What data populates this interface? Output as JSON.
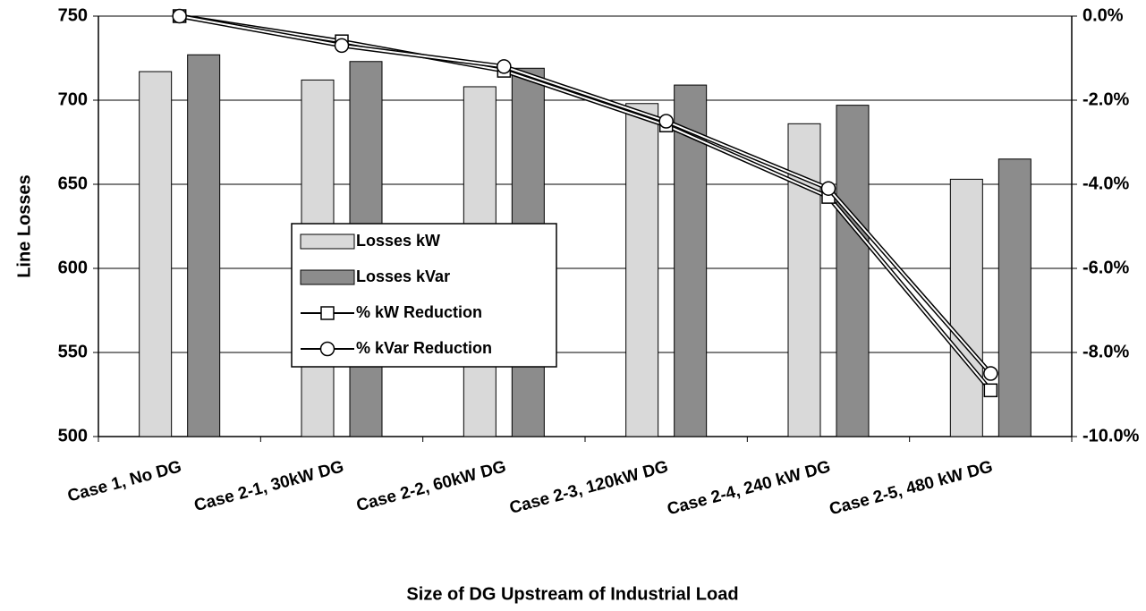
{
  "chart_data": {
    "type": "bar",
    "xlabel": "Size of DG Upstream of Industrial Load",
    "ylabel": "Line Losses",
    "categories": [
      "Case 1, No DG",
      "Case 2-1, 30kW DG",
      "Case 2-2, 60kW DG",
      "Case 2-3, 120kW DG",
      "Case 2-4, 240 kW DG",
      "Case 2-5, 480 kW DG"
    ],
    "series": [
      {
        "name": "Losses kW",
        "type": "bar",
        "color": "#d9d9d9",
        "values": [
          717,
          712,
          708,
          698,
          686,
          653
        ]
      },
      {
        "name": "Losses kVar",
        "type": "bar",
        "color": "#8c8c8c",
        "values": [
          727,
          723,
          719,
          709,
          697,
          665
        ]
      },
      {
        "name": "% kW Reduction",
        "type": "line",
        "axis": "y2",
        "marker": "square",
        "color": "#000000",
        "values": [
          0,
          -0.6,
          -1.3,
          -2.6,
          -4.3,
          -8.9
        ]
      },
      {
        "name": "% kVar Reduction",
        "type": "line",
        "axis": "y2",
        "marker": "circle",
        "color": "#000000",
        "values": [
          0,
          -0.7,
          -1.2,
          -2.5,
          -4.1,
          -8.5
        ]
      }
    ],
    "ylim": [
      500,
      750
    ],
    "yticks": [
      500,
      550,
      600,
      650,
      700,
      750
    ],
    "y2lim": [
      -10,
      0
    ],
    "y2ticks": [
      {
        "value": -10,
        "label": "-10.0%"
      },
      {
        "value": -8,
        "label": "-8.0%"
      },
      {
        "value": -6,
        "label": "-6.0%"
      },
      {
        "value": -4,
        "label": "-4.0%"
      },
      {
        "value": -2,
        "label": "-2.0%"
      },
      {
        "value": 0,
        "label": "0.0%"
      }
    ],
    "grid": true,
    "legend": "center"
  }
}
